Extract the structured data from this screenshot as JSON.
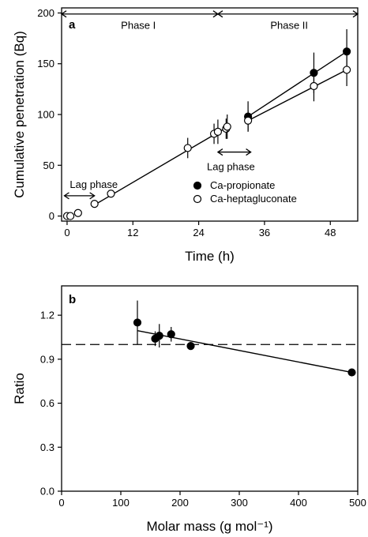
{
  "chart_data": [
    {
      "panel_label": "a",
      "type": "scatter",
      "xlabel": "Time (h)",
      "ylabel": "Cumulative penetration (Bq)",
      "xlim": [
        -1,
        53
      ],
      "ylim": [
        -5,
        205
      ],
      "xticks": [
        0,
        12,
        24,
        36,
        48
      ],
      "yticks": [
        0,
        50,
        100,
        150,
        200
      ],
      "legend_position": "lower-right",
      "series": [
        {
          "name": "Ca-propionate",
          "marker": "filled",
          "points": [
            {
              "x": 33,
              "y": 98,
              "err": 15
            },
            {
              "x": 45,
              "y": 141,
              "err": 20
            },
            {
              "x": 51,
              "y": 162,
              "err": 22
            }
          ]
        },
        {
          "name": "Ca-heptagluconate",
          "marker": "open",
          "points": [
            {
              "x": 0,
              "y": 0,
              "err": 0
            },
            {
              "x": 0.6,
              "y": 0,
              "err": 0
            },
            {
              "x": 2,
              "y": 3,
              "err": 0
            },
            {
              "x": 5,
              "y": 12,
              "err": 0
            },
            {
              "x": 8,
              "y": 22,
              "err": 0
            },
            {
              "x": 22,
              "y": 67,
              "err": 10
            },
            {
              "x": 26.8,
              "y": 81,
              "err": 10
            },
            {
              "x": 27.5,
              "y": 83,
              "err": 12
            },
            {
              "x": 29,
              "y": 86,
              "err": 10
            },
            {
              "x": 29.2,
              "y": 88,
              "err": 12
            },
            {
              "x": 33,
              "y": 94,
              "err": 10
            },
            {
              "x": 45,
              "y": 128,
              "err": 15
            },
            {
              "x": 51,
              "y": 144,
              "err": 16
            }
          ]
        }
      ],
      "fit_lines": [
        {
          "x": [
            5,
            29
          ],
          "y": [
            11,
            87
          ]
        },
        {
          "x": [
            33,
            51
          ],
          "y": [
            98,
            162
          ]
        },
        {
          "x": [
            33,
            51
          ],
          "y": [
            94,
            144
          ]
        }
      ],
      "annotations": {
        "phase1": "Phase I",
        "phase2": "Phase II",
        "lag1": "Lag phase",
        "lag2": "Lag phase"
      },
      "phase_arrows": [
        {
          "x1": -1,
          "x2": 27.5,
          "y": 199
        },
        {
          "x1": 27.5,
          "x2": 53,
          "y": 199
        }
      ],
      "lag_arrows": [
        {
          "x1": -0.5,
          "x2": 5,
          "y": 20
        },
        {
          "x1": 27.5,
          "x2": 33.5,
          "y": 63
        }
      ]
    },
    {
      "panel_label": "b",
      "type": "scatter",
      "xlabel": "Molar mass (g mol⁻¹)",
      "ylabel": "Ratio",
      "xlim": [
        0,
        500
      ],
      "ylim": [
        0.0,
        1.4
      ],
      "xticks": [
        0,
        100,
        200,
        300,
        400,
        500
      ],
      "yticks": [
        "0.0",
        "0.3",
        "0.6",
        "0.9",
        "1.2"
      ],
      "reference_line": 1.0,
      "points": [
        {
          "x": 128,
          "y": 1.15,
          "err": 0.15
        },
        {
          "x": 158,
          "y": 1.04,
          "err": 0.05
        },
        {
          "x": 165,
          "y": 1.06,
          "err": 0.08
        },
        {
          "x": 185,
          "y": 1.07,
          "err": 0.05
        },
        {
          "x": 218,
          "y": 0.99,
          "err": 0
        },
        {
          "x": 490,
          "y": 0.81,
          "err": 0
        }
      ],
      "fit_line": {
        "x": [
          128,
          490
        ],
        "y": [
          1.095,
          0.81
        ]
      }
    }
  ]
}
